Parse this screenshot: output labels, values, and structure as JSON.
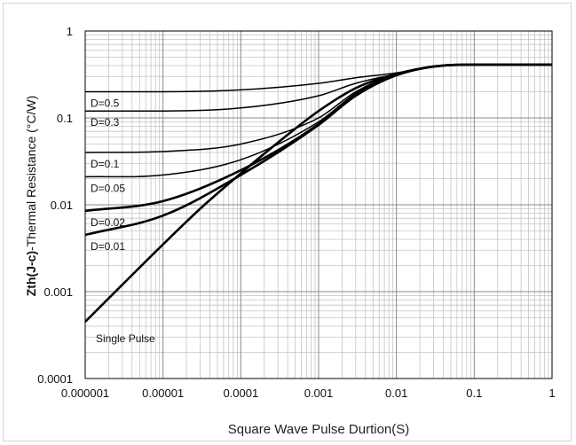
{
  "chart_data": {
    "type": "line",
    "x_scale": "log",
    "y_scale": "log",
    "xlim": [
      1e-06,
      1
    ],
    "ylim": [
      0.0001,
      1
    ],
    "xlabel": "Square Wave Pulse Durtion(S)",
    "ylabel_prefix": "Zth(J-c)",
    "ylabel_rest": "-Thermal  Resistance (°C/W)",
    "x_ticks": [
      {
        "value": 1e-06,
        "label": "0.000001"
      },
      {
        "value": 1e-05,
        "label": "0.00001"
      },
      {
        "value": 0.0001,
        "label": "0.0001"
      },
      {
        "value": 0.001,
        "label": "0.001"
      },
      {
        "value": 0.01,
        "label": "0.01"
      },
      {
        "value": 0.1,
        "label": "0.1"
      },
      {
        "value": 1,
        "label": "1"
      }
    ],
    "y_ticks": [
      {
        "value": 1,
        "label": "1"
      },
      {
        "value": 0.1,
        "label": "0.1"
      },
      {
        "value": 0.01,
        "label": "0.01"
      },
      {
        "value": 0.001,
        "label": "0.001"
      },
      {
        "value": 0.0001,
        "label": "0.0001"
      }
    ],
    "grid": true,
    "series": [
      {
        "name": "D=0.5",
        "bold": false,
        "x": [
          1e-06,
          1e-05,
          0.0001,
          0.001,
          0.003,
          0.01,
          0.03,
          0.1,
          1
        ],
        "y": [
          0.2,
          0.2,
          0.21,
          0.25,
          0.29,
          0.33,
          0.39,
          0.41,
          0.41
        ]
      },
      {
        "name": "D=0.3",
        "bold": false,
        "x": [
          1e-06,
          1e-05,
          0.0001,
          0.001,
          0.003,
          0.01,
          0.03,
          0.1,
          1
        ],
        "y": [
          0.12,
          0.12,
          0.13,
          0.18,
          0.25,
          0.32,
          0.39,
          0.41,
          0.41
        ]
      },
      {
        "name": "D=0.1",
        "bold": false,
        "x": [
          1e-06,
          1e-05,
          0.0001,
          0.001,
          0.003,
          0.01,
          0.03,
          0.1,
          1
        ],
        "y": [
          0.04,
          0.041,
          0.05,
          0.1,
          0.2,
          0.32,
          0.39,
          0.41,
          0.41
        ]
      },
      {
        "name": "D=0.05",
        "bold": false,
        "x": [
          1e-06,
          1e-05,
          0.0001,
          0.001,
          0.003,
          0.01,
          0.03,
          0.1,
          1
        ],
        "y": [
          0.021,
          0.022,
          0.033,
          0.09,
          0.19,
          0.31,
          0.39,
          0.41,
          0.41
        ]
      },
      {
        "name": "D=0.02",
        "bold": true,
        "x": [
          1e-06,
          1e-05,
          0.0001,
          0.001,
          0.003,
          0.01,
          0.03,
          0.1,
          1
        ],
        "y": [
          0.0085,
          0.011,
          0.025,
          0.085,
          0.19,
          0.31,
          0.39,
          0.41,
          0.41
        ]
      },
      {
        "name": "D=0.01",
        "bold": true,
        "x": [
          1e-06,
          1e-05,
          0.0001,
          0.001,
          0.003,
          0.01,
          0.03,
          0.1,
          1
        ],
        "y": [
          0.0045,
          0.0075,
          0.022,
          0.083,
          0.18,
          0.31,
          0.39,
          0.41,
          0.41
        ]
      },
      {
        "name": "Single Pulse",
        "bold": true,
        "x": [
          1e-06,
          3e-06,
          1e-05,
          3e-05,
          0.0001,
          0.0003,
          0.001,
          0.003,
          0.01,
          0.03,
          0.1,
          1
        ],
        "y": [
          0.00045,
          0.0012,
          0.0035,
          0.009,
          0.023,
          0.052,
          0.12,
          0.22,
          0.32,
          0.39,
          0.41,
          0.41
        ]
      }
    ]
  }
}
